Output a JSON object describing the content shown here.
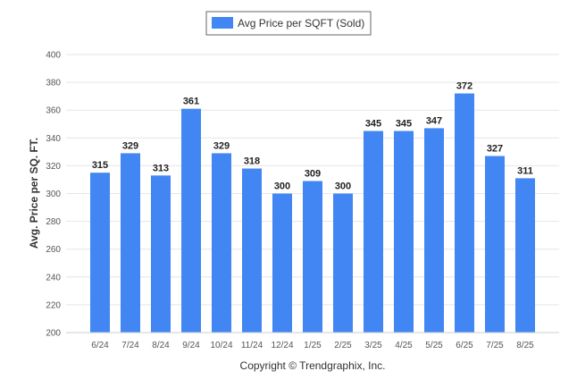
{
  "chart_data": {
    "type": "bar",
    "categories": [
      "6/24",
      "7/24",
      "8/24",
      "9/24",
      "10/24",
      "11/24",
      "12/24",
      "1/25",
      "2/25",
      "3/25",
      "4/25",
      "5/25",
      "6/25",
      "7/25",
      "8/25"
    ],
    "series": [
      {
        "name": "Avg Price per SQFT (Sold)",
        "values": [
          315,
          329,
          313,
          361,
          329,
          318,
          300,
          309,
          300,
          345,
          345,
          347,
          372,
          327,
          311
        ],
        "color": "#4286f4"
      }
    ],
    "ylabel": "Avg. Price per SQ. FT.",
    "xlabel": "",
    "ylim": [
      200,
      400
    ],
    "yticks": [
      200,
      220,
      240,
      260,
      280,
      300,
      320,
      340,
      360,
      380,
      400
    ],
    "grid": true,
    "legend_position": "top-center",
    "show_data_labels": true
  },
  "footer": {
    "copyright": "Copyright © Trendgraphix, Inc."
  }
}
